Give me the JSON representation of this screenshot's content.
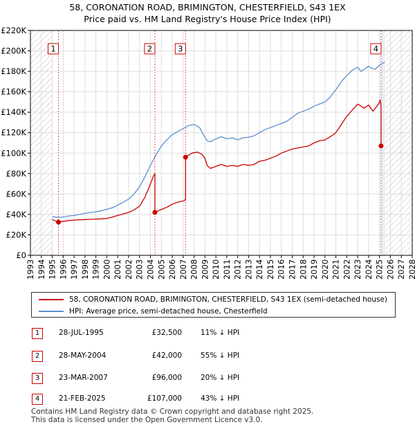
{
  "title_line1": "58, CORONATION ROAD, BRIMINGTON, CHESTERFIELD, S43 1EX",
  "title_line2": "Price paid vs. HM Land Registry's House Price Index (HPI)",
  "colors": {
    "price_line": "#cc0000",
    "hpi_line": "#5b8fd0",
    "vline": "#dd5555",
    "grid": "#dddddd",
    "hatch": "#bbbbbb",
    "shade": "#e9eef8"
  },
  "chart_data": {
    "type": "line",
    "title": "58, CORONATION ROAD, BRIMINGTON, CHESTERFIELD, S43 1EX — Price paid vs. HM Land Registry's House Price Index (HPI)",
    "xlabel": "",
    "ylabel": "",
    "xlim": [
      1993,
      2028
    ],
    "ylim": [
      0,
      220000
    ],
    "x_ticks": [
      1993,
      1994,
      1995,
      1996,
      1997,
      1998,
      1999,
      2000,
      2001,
      2002,
      2003,
      2004,
      2005,
      2006,
      2007,
      2008,
      2009,
      2010,
      2011,
      2012,
      2013,
      2014,
      2015,
      2016,
      2017,
      2018,
      2019,
      2020,
      2021,
      2022,
      2023,
      2024,
      2025,
      2026,
      2027,
      2028
    ],
    "y_ticks": [
      {
        "value": 0,
        "label": "£0"
      },
      {
        "value": 20000,
        "label": "£20K"
      },
      {
        "value": 40000,
        "label": "£40K"
      },
      {
        "value": 60000,
        "label": "£60K"
      },
      {
        "value": 80000,
        "label": "£80K"
      },
      {
        "value": 100000,
        "label": "£100K"
      },
      {
        "value": 120000,
        "label": "£120K"
      },
      {
        "value": 140000,
        "label": "£140K"
      },
      {
        "value": 160000,
        "label": "£160K"
      },
      {
        "value": 180000,
        "label": "£180K"
      },
      {
        "value": 200000,
        "label": "£200K"
      },
      {
        "value": 220000,
        "label": "£220K"
      }
    ],
    "hatched_ranges": [
      [
        1993,
        1995.0
      ],
      [
        2025.5,
        2028
      ]
    ],
    "shaded_range": [
      2025.13,
      2025.5
    ],
    "series": [
      {
        "name": "58, CORONATION ROAD, BRIMINGTON, CHESTERFIELD, S43 1EX (semi-detached house)",
        "role": "price",
        "x": [
          1995.0,
          1995.57,
          1995.8,
          1996.5,
          1997.0,
          1998.0,
          1999.0,
          2000.0,
          2000.5,
          2001.0,
          2001.5,
          2002.0,
          2002.5,
          2003.0,
          2003.5,
          2003.9,
          2004.0,
          2004.3,
          2004.41,
          2004.41,
          2004.8,
          2005.5,
          2006.0,
          2006.5,
          2007.1,
          2007.22,
          2007.22,
          2007.5,
          2007.8,
          2008.3,
          2008.7,
          2009.0,
          2009.2,
          2009.5,
          2010.0,
          2010.5,
          2011.0,
          2011.5,
          2012.0,
          2012.5,
          2013.0,
          2013.5,
          2014.0,
          2014.5,
          2015.0,
          2015.5,
          2016.0,
          2016.5,
          2017.0,
          2017.5,
          2018.0,
          2018.5,
          2019.0,
          2019.5,
          2020.0,
          2020.5,
          2021.0,
          2021.5,
          2022.0,
          2022.5,
          2023.0,
          2023.3,
          2023.6,
          2024.0,
          2024.4,
          2024.7,
          2024.9,
          2025.0,
          2025.05,
          2025.14,
          2025.14
        ],
        "y": [
          35000,
          32500,
          33000,
          34000,
          34500,
          35000,
          35500,
          36000,
          37500,
          39000,
          40500,
          42000,
          44500,
          48000,
          57000,
          67000,
          70000,
          78000,
          80000,
          42000,
          44000,
          47000,
          50000,
          52000,
          53500,
          55000,
          96000,
          98000,
          100000,
          101000,
          99000,
          95000,
          88000,
          85000,
          87000,
          89000,
          87000,
          88000,
          87000,
          89000,
          88000,
          89000,
          92000,
          93000,
          95000,
          97000,
          100000,
          102000,
          104000,
          105000,
          106000,
          107000,
          110000,
          112000,
          113000,
          116000,
          120000,
          128000,
          136000,
          142000,
          148000,
          146000,
          144000,
          147000,
          141000,
          145000,
          148000,
          150000,
          152000,
          146000,
          107000
        ]
      },
      {
        "name": "HPI: Average price, semi-detached house, Chesterfield",
        "role": "hpi",
        "x": [
          1995.0,
          1995.5,
          1996.0,
          1996.5,
          1997.0,
          1997.5,
          1998.0,
          1998.5,
          1999.0,
          1999.5,
          2000.0,
          2000.5,
          2001.0,
          2001.5,
          2002.0,
          2002.5,
          2003.0,
          2003.5,
          2004.0,
          2004.5,
          2005.0,
          2005.5,
          2006.0,
          2006.5,
          2007.0,
          2007.5,
          2008.0,
          2008.5,
          2008.8,
          2009.2,
          2009.5,
          2010.0,
          2010.5,
          2011.0,
          2011.5,
          2012.0,
          2012.5,
          2013.0,
          2013.5,
          2014.0,
          2014.5,
          2015.0,
          2015.5,
          2016.0,
          2016.5,
          2017.0,
          2017.5,
          2018.0,
          2018.5,
          2019.0,
          2019.5,
          2020.0,
          2020.5,
          2021.0,
          2021.5,
          2022.0,
          2022.5,
          2023.0,
          2023.3,
          2023.6,
          2024.0,
          2024.3,
          2024.6,
          2025.0,
          2025.3,
          2025.5
        ],
        "y": [
          38000,
          37000,
          37500,
          38500,
          39000,
          40000,
          41000,
          42000,
          42500,
          43500,
          45000,
          46500,
          49000,
          52000,
          55000,
          60000,
          67000,
          77000,
          88000,
          98000,
          107000,
          113000,
          118000,
          121000,
          124000,
          127000,
          128000,
          125000,
          119000,
          112000,
          111000,
          114000,
          116000,
          114000,
          115000,
          113000,
          115000,
          115500,
          117000,
          120000,
          123000,
          125000,
          127000,
          129000,
          131000,
          135000,
          139000,
          141000,
          143000,
          146000,
          148000,
          150000,
          155000,
          162000,
          170000,
          176000,
          181000,
          184000,
          180000,
          182000,
          185000,
          183000,
          182000,
          186000,
          188000,
          189000
        ]
      }
    ],
    "annotations": [
      {
        "label": "1",
        "x": 1995.57,
        "y": 32500
      },
      {
        "label": "2",
        "x": 2004.41,
        "y": 42000
      },
      {
        "label": "3",
        "x": 2007.22,
        "y": 96000
      },
      {
        "label": "4",
        "x": 2025.14,
        "y": 107000
      }
    ]
  },
  "legend": {
    "price_label": "58, CORONATION ROAD, BRIMINGTON, CHESTERFIELD, S43 1EX (semi-detached house)",
    "hpi_label": "HPI: Average price, semi-detached house, Chesterfield"
  },
  "transactions": [
    {
      "num": "1",
      "date": "28-JUL-1995",
      "price": "£32,500",
      "hpi": "11% ↓ HPI"
    },
    {
      "num": "2",
      "date": "28-MAY-2004",
      "price": "£42,000",
      "hpi": "55% ↓ HPI"
    },
    {
      "num": "3",
      "date": "23-MAR-2007",
      "price": "£96,000",
      "hpi": "20% ↓ HPI"
    },
    {
      "num": "4",
      "date": "21-FEB-2025",
      "price": "£107,000",
      "hpi": "43% ↓ HPI"
    }
  ],
  "footer": {
    "line1": "Contains HM Land Registry data © Crown copyright and database right 2025.",
    "line2": "This data is licensed under the Open Government Licence v3.0."
  }
}
